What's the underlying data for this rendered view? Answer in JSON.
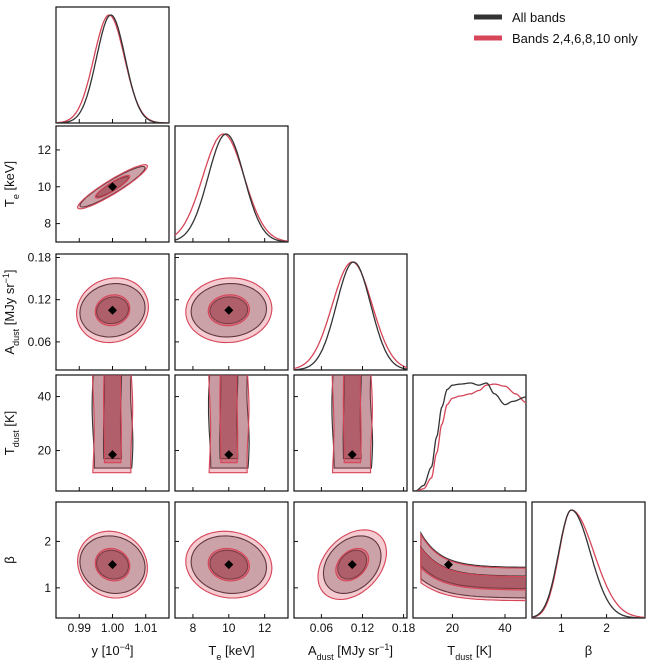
{
  "chart_data": {
    "type": "corner",
    "colors": {
      "all": "#333333",
      "subset": "#d64558"
    },
    "legend": {
      "placement": "top-right",
      "entries": [
        {
          "name": "All bands",
          "color": "#333333"
        },
        {
          "name": "Bands 2,4,6,8,10 only",
          "color": "#d64558"
        }
      ]
    },
    "parameters": [
      {
        "key": "y",
        "label": "y [10",
        "label_sup": "−4",
        "label_tail": "]",
        "range": [
          0.983,
          1.017
        ],
        "ticks": [
          0.99,
          1.0,
          1.01
        ],
        "tick_labels": [
          "0.99",
          "1.00",
          "1.01"
        ],
        "truth": 1.0
      },
      {
        "key": "Te",
        "label": "T",
        "label_sub": "e",
        "label_tail": " [keV]",
        "range": [
          7.0,
          13.3
        ],
        "ticks": [
          8,
          10,
          12
        ],
        "tick_labels": [
          "8",
          "10",
          "12"
        ],
        "truth": 10.0
      },
      {
        "key": "Adust",
        "label": "A",
        "label_sub": "dust",
        "label_tail": " [MJy sr",
        "label_sup": "−1",
        "label_tail2": "]",
        "range": [
          0.02,
          0.185
        ],
        "ticks": [
          0.06,
          0.12,
          0.18
        ],
        "tick_labels": [
          "0.06",
          "0.12",
          "0.18"
        ],
        "truth": 0.105
      },
      {
        "key": "Tdust",
        "label": "T",
        "label_sub": "dust",
        "label_tail": " [K]",
        "range": [
          5,
          48
        ],
        "ticks": [
          20,
          40
        ],
        "tick_labels": [
          "20",
          "40"
        ],
        "truth": 18.5
      },
      {
        "key": "beta",
        "label": "β",
        "range": [
          0.35,
          2.85
        ],
        "ticks": [
          1,
          2
        ],
        "tick_labels": [
          "1",
          "2"
        ],
        "truth": 1.5
      }
    ],
    "marginals": [
      {
        "param": "y",
        "all": {
          "mode": 0.9995,
          "sigma": 0.0043
        },
        "subset": {
          "mode": 0.999,
          "sigma": 0.0046
        }
      },
      {
        "param": "Te",
        "all": {
          "mode": 9.85,
          "sigma": 1.0
        },
        "subset": {
          "mode": 9.7,
          "sigma": 1.15
        }
      },
      {
        "param": "Adust",
        "all": {
          "mode": 0.107,
          "sigma": 0.025
        },
        "subset": {
          "mode": 0.105,
          "sigma": 0.029
        }
      },
      {
        "param": "Tdust",
        "all": {
          "curve": [
            [
              6,
              0.0
            ],
            [
              9,
              0.05
            ],
            [
              12,
              0.22
            ],
            [
              14,
              0.5
            ],
            [
              16,
              0.78
            ],
            [
              18,
              0.94
            ],
            [
              20,
              0.98
            ],
            [
              23,
              0.99
            ],
            [
              27,
              1.0
            ],
            [
              30,
              0.98
            ],
            [
              33,
              1.0
            ],
            [
              36,
              0.9
            ],
            [
              40,
              0.8
            ],
            [
              43,
              0.83
            ],
            [
              48,
              0.87
            ]
          ]
        },
        "subset": {
          "curve": [
            [
              6,
              0.0
            ],
            [
              9,
              0.02
            ],
            [
              12,
              0.12
            ],
            [
              14,
              0.35
            ],
            [
              16,
              0.62
            ],
            [
              18,
              0.8
            ],
            [
              20,
              0.86
            ],
            [
              23,
              0.88
            ],
            [
              27,
              0.9
            ],
            [
              30,
              0.93
            ],
            [
              33,
              0.98
            ],
            [
              36,
              0.99
            ],
            [
              40,
              0.97
            ],
            [
              44,
              0.9
            ],
            [
              48,
              0.82
            ]
          ]
        }
      },
      {
        "param": "beta",
        "all": {
          "mode": 1.22,
          "sigma_left": 0.28,
          "sigma_right": 0.42
        },
        "subset": {
          "mode": 1.22,
          "sigma_left": 0.27,
          "sigma_right": 0.5
        }
      }
    ],
    "contours": [
      {
        "x": "y",
        "y": "Te",
        "all": [
          {
            "center": [
              1.0,
              10.0
            ],
            "ax": 0.0036,
            "ay": 0.9,
            "ellipse": [
              0.0098,
              1.1,
              0.93
            ]
          },
          {
            "ellipse": [
              0.0048,
              0.55,
              0.9
            ]
          }
        ],
        "subset": [
          {
            "ellipse": [
              0.0105,
              1.2,
              0.93
            ]
          },
          {
            "ellipse": [
              0.0052,
              0.62,
              0.9
            ]
          }
        ]
      },
      {
        "x": "y",
        "y": "Adust",
        "all": [
          {
            "ellipse": [
              0.0098,
              0.038,
              0.1
            ]
          },
          {
            "ellipse": [
              0.0048,
              0.019,
              0.1
            ]
          }
        ],
        "subset": [
          {
            "ellipse": [
              0.0108,
              0.046,
              0.1
            ]
          },
          {
            "ellipse": [
              0.0052,
              0.022,
              0.1
            ]
          }
        ]
      },
      {
        "x": "Te",
        "y": "Adust",
        "all": [
          {
            "ellipse": [
              2.1,
              0.038,
              0.05
            ]
          },
          {
            "ellipse": [
              1.05,
              0.019,
              0.05
            ]
          }
        ],
        "subset": [
          {
            "ellipse": [
              2.4,
              0.046,
              0.05
            ]
          },
          {
            "ellipse": [
              1.15,
              0.022,
              0.05
            ]
          }
        ]
      },
      {
        "x": "y",
        "y": "Tdust",
        "kind": "column"
      },
      {
        "x": "Te",
        "y": "Tdust",
        "kind": "column"
      },
      {
        "x": "Adust",
        "y": "Tdust",
        "kind": "column"
      },
      {
        "x": "y",
        "y": "beta",
        "all": [
          {
            "ellipse": [
              0.0098,
              0.62,
              -0.1
            ]
          },
          {
            "ellipse": [
              0.0048,
              0.31,
              -0.1
            ]
          }
        ],
        "subset": [
          {
            "ellipse": [
              0.0105,
              0.72,
              -0.1
            ]
          },
          {
            "ellipse": [
              0.0052,
              0.35,
              -0.1
            ]
          }
        ]
      },
      {
        "x": "Te",
        "y": "beta",
        "all": [
          {
            "ellipse": [
              2.1,
              0.62,
              -0.1
            ]
          },
          {
            "ellipse": [
              1.05,
              0.31,
              -0.1
            ]
          }
        ],
        "subset": [
          {
            "ellipse": [
              2.4,
              0.72,
              -0.1
            ]
          },
          {
            "ellipse": [
              1.15,
              0.35,
              -0.1
            ]
          }
        ]
      },
      {
        "x": "Adust",
        "y": "beta",
        "all": [
          {
            "ellipse": [
              0.042,
              0.62,
              0.3
            ]
          },
          {
            "ellipse": [
              0.021,
              0.31,
              0.3
            ]
          }
        ],
        "subset": [
          {
            "ellipse": [
              0.05,
              0.75,
              0.35
            ]
          },
          {
            "ellipse": [
              0.024,
              0.35,
              0.35
            ]
          }
        ]
      },
      {
        "x": "Tdust",
        "y": "beta",
        "kind": "banana"
      }
    ]
  }
}
